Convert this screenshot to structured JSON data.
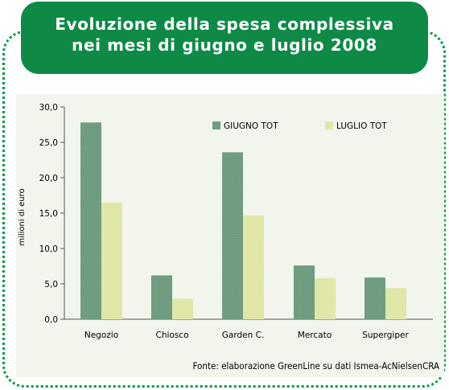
{
  "title": {
    "line1": "Evoluzione della spesa complessiva",
    "line2": "nei mesi di giugno e luglio 2008"
  },
  "source": "Fonte: elaborazione GreenLine su dati Ismea-AcNielsenCRA",
  "colors": {
    "title_bg": "#0e8a46",
    "frame_dots": "#009a44",
    "plot_bg": "#f2f5ec",
    "giugno": "#6c9a7e",
    "luglio": "#dfe5a3"
  },
  "chart_data": {
    "type": "bar",
    "title": "Evoluzione della spesa complessiva nei mesi di giugno e luglio 2008",
    "ylabel": "milioni di euro",
    "xlabel": "",
    "ylim": [
      0,
      30
    ],
    "yticks": [
      "0,0",
      "5,0",
      "10,0",
      "15,0",
      "20,0",
      "25,0",
      "30,0"
    ],
    "categories": [
      "Negozio",
      "Chiosco",
      "Garden C.",
      "Mercato",
      "Supergiper"
    ],
    "legend_position": "top-right",
    "series": [
      {
        "name": "GIUGNO TOT",
        "values": [
          27.8,
          6.2,
          23.6,
          7.6,
          5.9
        ],
        "color": "#6c9a7e"
      },
      {
        "name": "LUGLIO TOT",
        "values": [
          16.5,
          2.9,
          14.7,
          5.8,
          4.4
        ],
        "color": "#dfe5a3"
      }
    ]
  }
}
